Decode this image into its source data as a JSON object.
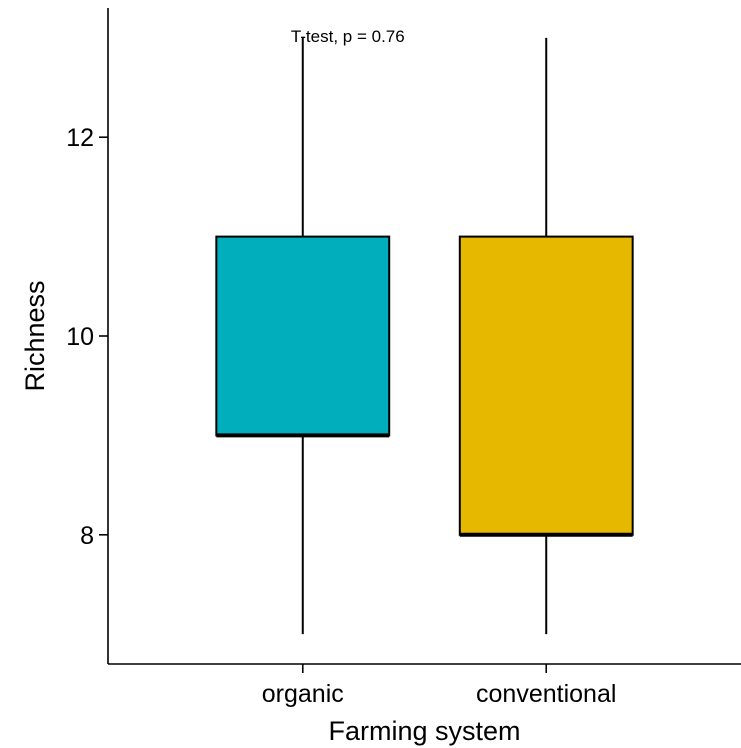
{
  "chart_data": {
    "type": "boxplot",
    "title": "",
    "xlabel": "Farming system",
    "ylabel": "Richness",
    "ylim": [
      6.7,
      13.3
    ],
    "yticks": [
      8,
      10,
      12
    ],
    "grid": false,
    "legend": "none",
    "annotation": "T-test, p = 0.76",
    "categories": [
      "organic",
      "conventional"
    ],
    "boxes": [
      {
        "category": "organic",
        "min": 7,
        "q1": 9,
        "median": 9,
        "q3": 11,
        "max": 13,
        "color": "#00AFBB"
      },
      {
        "category": "conventional",
        "min": 7,
        "q1": 8,
        "median": 8,
        "q3": 11,
        "max": 13,
        "color": "#E7B800"
      }
    ]
  }
}
